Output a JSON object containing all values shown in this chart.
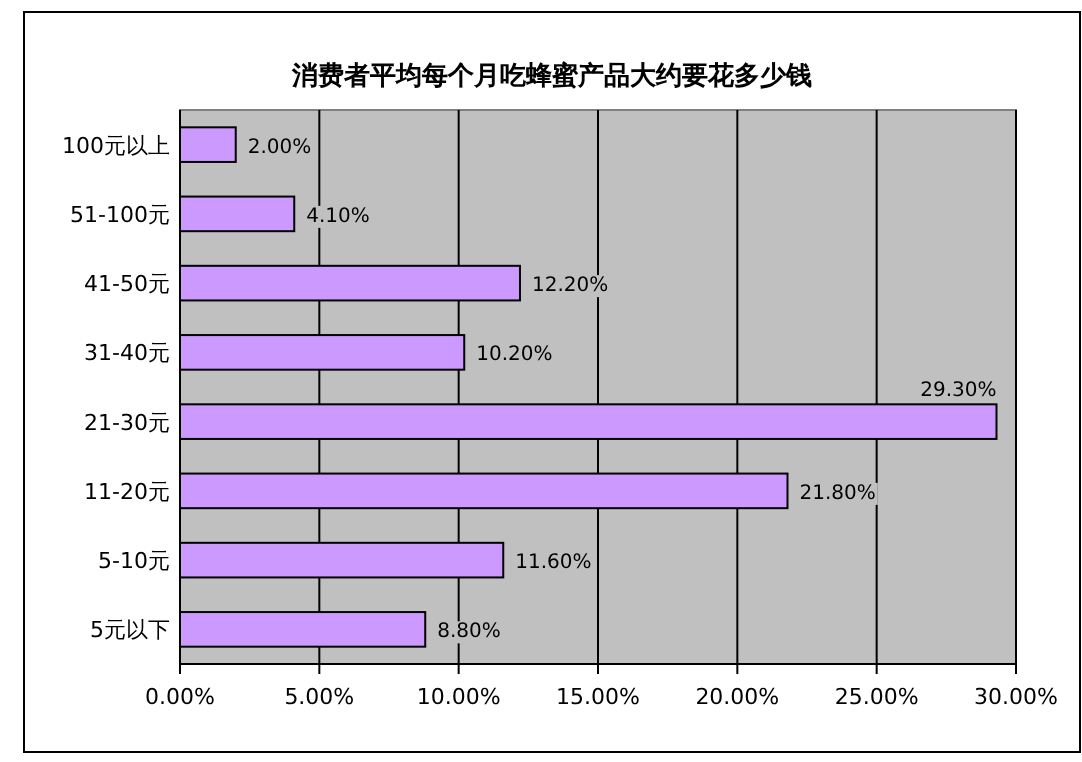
{
  "chart_data": {
    "type": "bar",
    "orientation": "horizontal",
    "title": "消费者平均每个月吃蜂蜜产品大约要花多少钱",
    "categories": [
      "100元以上",
      "51-100元",
      "41-50元",
      "31-40元",
      "21-30元",
      "11-20元",
      "5-10元",
      "5元以下"
    ],
    "values": [
      2.0,
      4.1,
      12.2,
      10.2,
      29.3,
      21.8,
      11.6,
      8.8
    ],
    "value_labels": [
      "2.00%",
      "4.10%",
      "12.20%",
      "10.20%",
      "29.30%",
      "21.80%",
      "11.60%",
      "8.80%"
    ],
    "color": "#cc99ff",
    "xlim": [
      0,
      30
    ],
    "xticks": [
      {
        "value": 0,
        "label": "0.00%"
      },
      {
        "value": 5,
        "label": "5.00%"
      },
      {
        "value": 10,
        "label": "10.00%"
      },
      {
        "value": 15,
        "label": "15.00%"
      },
      {
        "value": 20,
        "label": "20.00%"
      },
      {
        "value": 25,
        "label": "25.00%"
      },
      {
        "value": 30,
        "label": "30.00%"
      }
    ],
    "grid": "x"
  }
}
